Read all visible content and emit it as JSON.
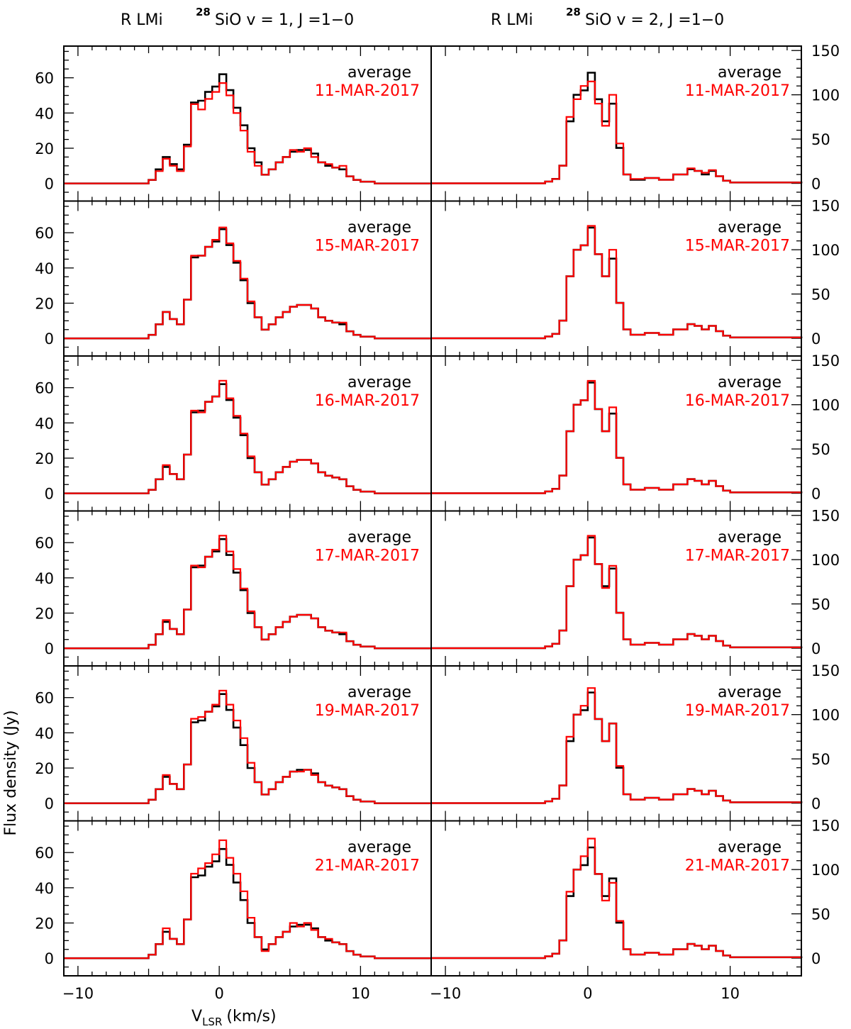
{
  "titles": {
    "left": {
      "prefix": "R LMi",
      "iso": "28",
      "line": "SiO v = 1, J =1−0"
    },
    "right": {
      "prefix": "R LMi",
      "iso": "28",
      "line": "SiO v = 2, J =1−0"
    }
  },
  "axis_labels": {
    "xlabel_main": "V",
    "xlabel_sub": "LSR",
    "xlabel_unit": "(km/s)",
    "ylabel": "Flux density (Jy)"
  },
  "legend": {
    "average_label": "average"
  },
  "colors": {
    "average": "#000000",
    "epoch": "#ff0000"
  },
  "chart_data": [
    {
      "type": "line",
      "title": "R LMi 28SiO v = 1, J =1−0",
      "column": "left",
      "xlabel": "V LSR (km/s)",
      "ylabel": "Flux density (Jy)",
      "xlim": [
        -11,
        15
      ],
      "ylim": [
        -10,
        78
      ],
      "xticks": [
        -10,
        0,
        10
      ],
      "yticks": [
        0,
        20,
        40,
        60
      ],
      "panels": [
        "11-MAR-2017",
        "15-MAR-2017",
        "16-MAR-2017",
        "17-MAR-2017",
        "19-MAR-2017",
        "21-MAR-2017"
      ],
      "series": [
        {
          "name": "average",
          "x": [
            -11,
            -6,
            -5,
            -4.5,
            -4,
            -3.5,
            -3,
            -2.5,
            -2,
            -1.5,
            -1,
            -0.5,
            0,
            0.5,
            1,
            1.5,
            2,
            2.5,
            3,
            3.5,
            4,
            4.5,
            5,
            5.5,
            6,
            6.5,
            7,
            7.5,
            8,
            8.5,
            9,
            9.5,
            10,
            11,
            15
          ],
          "values": [
            0,
            0,
            2,
            8,
            15,
            11,
            8,
            22,
            46,
            47,
            52,
            55,
            62,
            53,
            43,
            33,
            20,
            12,
            5,
            8,
            12,
            15,
            18,
            19,
            19,
            17,
            12,
            10,
            9,
            8,
            4,
            2,
            1,
            0,
            0
          ]
        },
        {
          "name": "11-MAR-2017",
          "x": [
            -11,
            -6,
            -5,
            -4.5,
            -4,
            -3.5,
            -3,
            -2.5,
            -2,
            -1.5,
            -1,
            -0.5,
            0,
            0.5,
            1,
            1.5,
            2,
            2.5,
            3,
            3.5,
            4,
            4.5,
            5,
            5.5,
            6,
            6.5,
            7,
            7.5,
            8,
            8.5,
            9,
            9.5,
            10,
            11,
            15
          ],
          "values": [
            0,
            0,
            2,
            7,
            14,
            10,
            7,
            21,
            45,
            42,
            48,
            52,
            57,
            50,
            40,
            30,
            18,
            10,
            5,
            8,
            12,
            15,
            19,
            18,
            20,
            15,
            12,
            11,
            9,
            10,
            4,
            2,
            1,
            0,
            0
          ]
        },
        {
          "name": "15-MAR-2017",
          "x": [
            -11,
            -6,
            -5,
            -4.5,
            -4,
            -3.5,
            -3,
            -2.5,
            -2,
            -1.5,
            -1,
            -0.5,
            0,
            0.5,
            1,
            1.5,
            2,
            2.5,
            3,
            3.5,
            4,
            4.5,
            5,
            5.5,
            6,
            6.5,
            7,
            7.5,
            8,
            8.5,
            9,
            9.5,
            10,
            11,
            15
          ],
          "values": [
            0,
            0,
            2,
            8,
            15,
            11,
            8,
            22,
            47,
            47,
            52,
            56,
            63,
            54,
            44,
            34,
            21,
            12,
            5,
            8,
            12,
            15,
            18,
            19,
            19,
            17,
            12,
            10,
            9,
            9,
            4,
            2,
            1,
            0,
            0
          ]
        },
        {
          "name": "16-MAR-2017",
          "x": [
            -11,
            -6,
            -5,
            -4.5,
            -4,
            -3.5,
            -3,
            -2.5,
            -2,
            -1.5,
            -1,
            -0.5,
            0,
            0.5,
            1,
            1.5,
            2,
            2.5,
            3,
            3.5,
            4,
            4.5,
            5,
            5.5,
            6,
            6.5,
            7,
            7.5,
            8,
            8.5,
            9,
            9.5,
            10,
            11,
            15
          ],
          "values": [
            0,
            0,
            2,
            8,
            16,
            11,
            8,
            22,
            47,
            46,
            52,
            55,
            64,
            54,
            44,
            34,
            21,
            12,
            5,
            8,
            12,
            15,
            18,
            19,
            19,
            17,
            12,
            10,
            9,
            8,
            4,
            2,
            1,
            0,
            0
          ]
        },
        {
          "name": "17-MAR-2017",
          "x": [
            -11,
            -6,
            -5,
            -4.5,
            -4,
            -3.5,
            -3,
            -2.5,
            -2,
            -1.5,
            -1,
            -0.5,
            0,
            0.5,
            1,
            1.5,
            2,
            2.5,
            3,
            3.5,
            4,
            4.5,
            5,
            5.5,
            6,
            6.5,
            7,
            7.5,
            8,
            8.5,
            9,
            9.5,
            10,
            11,
            15
          ],
          "values": [
            0,
            0,
            2,
            8,
            16,
            11,
            8,
            22,
            47,
            46,
            52,
            56,
            64,
            55,
            45,
            34,
            21,
            12,
            5,
            8,
            12,
            15,
            18,
            19,
            19,
            17,
            12,
            10,
            9,
            9,
            4,
            2,
            1,
            0,
            0
          ]
        },
        {
          "name": "19-MAR-2017",
          "x": [
            -11,
            -6,
            -5,
            -4.5,
            -4,
            -3.5,
            -3,
            -2.5,
            -2,
            -1.5,
            -1,
            -0.5,
            0,
            0.5,
            1,
            1.5,
            2,
            2.5,
            3,
            3.5,
            4,
            4.5,
            5,
            5.5,
            6,
            6.5,
            7,
            7.5,
            8,
            8.5,
            9,
            9.5,
            10,
            11,
            15
          ],
          "values": [
            0,
            0,
            2,
            8,
            16,
            11,
            8,
            22,
            48,
            49,
            52,
            56,
            64,
            56,
            47,
            37,
            23,
            12,
            5,
            8,
            12,
            15,
            18,
            18,
            19,
            16,
            12,
            10,
            9,
            8,
            4,
            2,
            1,
            0,
            0
          ]
        },
        {
          "name": "21-MAR-2017",
          "x": [
            -11,
            -6,
            -5,
            -4.5,
            -4,
            -3.5,
            -3,
            -2.5,
            -2,
            -1.5,
            -1,
            -0.5,
            0,
            0.5,
            1,
            1.5,
            2,
            2.5,
            3,
            3.5,
            4,
            4.5,
            5,
            5.5,
            6,
            6.5,
            7,
            7.5,
            8,
            8.5,
            9,
            9.5,
            10,
            11,
            15
          ],
          "values": [
            0,
            0,
            2,
            8,
            17,
            11,
            8,
            22,
            48,
            51,
            54,
            59,
            67,
            57,
            48,
            38,
            23,
            12,
            4,
            8,
            12,
            15,
            20,
            18,
            20,
            16,
            12,
            11,
            9,
            8,
            4,
            2,
            1,
            0,
            0
          ]
        }
      ]
    },
    {
      "type": "line",
      "title": "R LMi 28SiO v = 2, J =1−0",
      "column": "right",
      "xlabel": "V LSR (km/s)",
      "ylabel": "Flux density (Jy)",
      "xlim": [
        -11,
        15
      ],
      "ylim": [
        -20,
        155
      ],
      "xticks": [
        -10,
        0,
        10
      ],
      "yticks": [
        0,
        50,
        100,
        150
      ],
      "panels": [
        "11-MAR-2017",
        "15-MAR-2017",
        "16-MAR-2017",
        "17-MAR-2017",
        "19-MAR-2017",
        "21-MAR-2017"
      ],
      "series": [
        {
          "name": "average",
          "x": [
            -11,
            -3.5,
            -3,
            -2.5,
            -2,
            -1.5,
            -1,
            -0.5,
            0,
            0.5,
            1,
            1.5,
            2,
            2.5,
            3,
            4,
            5,
            6,
            7,
            7.5,
            8,
            8.5,
            9,
            9.5,
            10,
            15
          ],
          "values": [
            0,
            0,
            2,
            5,
            20,
            70,
            100,
            105,
            125,
            95,
            70,
            90,
            40,
            10,
            4,
            6,
            4,
            10,
            16,
            14,
            10,
            14,
            8,
            3,
            1,
            0
          ]
        },
        {
          "name": "11-MAR-2017",
          "x": [
            -11,
            -3.5,
            -3,
            -2.5,
            -2,
            -1.5,
            -1,
            -0.5,
            0,
            0.5,
            1,
            1.5,
            2,
            2.5,
            3,
            4,
            5,
            6,
            7,
            7.5,
            8,
            8.5,
            9,
            9.5,
            10,
            15
          ],
          "values": [
            0,
            0,
            2,
            5,
            20,
            75,
            95,
            110,
            115,
            90,
            65,
            100,
            45,
            10,
            5,
            6,
            4,
            10,
            17,
            14,
            12,
            15,
            8,
            3,
            1,
            0
          ]
        },
        {
          "name": "15-MAR-2017",
          "x": [
            -11,
            -3.5,
            -3,
            -2.5,
            -2,
            -1.5,
            -1,
            -0.5,
            0,
            0.5,
            1,
            1.5,
            2,
            2.5,
            3,
            4,
            5,
            6,
            7,
            7.5,
            8,
            8.5,
            9,
            9.5,
            10,
            15
          ],
          "values": [
            0,
            0,
            2,
            5,
            20,
            70,
            100,
            105,
            127,
            95,
            70,
            100,
            40,
            10,
            4,
            6,
            4,
            10,
            16,
            14,
            10,
            14,
            8,
            3,
            1,
            0
          ]
        },
        {
          "name": "16-MAR-2017",
          "x": [
            -11,
            -3.5,
            -3,
            -2.5,
            -2,
            -1.5,
            -1,
            -0.5,
            0,
            0.5,
            1,
            1.5,
            2,
            2.5,
            3,
            4,
            5,
            6,
            7,
            7.5,
            8,
            8.5,
            9,
            9.5,
            10,
            15
          ],
          "values": [
            0,
            0,
            2,
            5,
            20,
            70,
            100,
            105,
            127,
            95,
            70,
            97,
            40,
            10,
            4,
            6,
            4,
            10,
            16,
            14,
            10,
            14,
            8,
            3,
            1,
            0
          ]
        },
        {
          "name": "17-MAR-2017",
          "x": [
            -11,
            -3.5,
            -3,
            -2.5,
            -2,
            -1.5,
            -1,
            -0.5,
            0,
            0.5,
            1,
            1.5,
            2,
            2.5,
            3,
            4,
            5,
            6,
            7,
            7.5,
            8,
            8.5,
            9,
            9.5,
            10,
            15
          ],
          "values": [
            0,
            0,
            2,
            5,
            20,
            70,
            100,
            105,
            127,
            95,
            68,
            93,
            40,
            10,
            4,
            6,
            4,
            10,
            16,
            14,
            10,
            14,
            8,
            3,
            1,
            0
          ]
        },
        {
          "name": "19-MAR-2017",
          "x": [
            -11,
            -3.5,
            -3,
            -2.5,
            -2,
            -1.5,
            -1,
            -0.5,
            0,
            0.5,
            1,
            1.5,
            2,
            2.5,
            3,
            4,
            5,
            6,
            7,
            7.5,
            8,
            8.5,
            9,
            9.5,
            10,
            15
          ],
          "values": [
            0,
            0,
            2,
            5,
            20,
            75,
            100,
            110,
            130,
            95,
            70,
            90,
            42,
            10,
            4,
            6,
            4,
            10,
            16,
            14,
            10,
            14,
            8,
            3,
            1,
            0
          ]
        },
        {
          "name": "21-MAR-2017",
          "x": [
            -11,
            -3.5,
            -3,
            -2.5,
            -2,
            -1.5,
            -1,
            -0.5,
            0,
            0.5,
            1,
            1.5,
            2,
            2.5,
            3,
            4,
            5,
            6,
            7,
            7.5,
            8,
            8.5,
            9,
            9.5,
            10,
            15
          ],
          "values": [
            0,
            0,
            2,
            5,
            20,
            75,
            100,
            115,
            135,
            95,
            65,
            85,
            42,
            10,
            4,
            6,
            4,
            10,
            16,
            14,
            10,
            14,
            8,
            3,
            1,
            0
          ]
        }
      ]
    }
  ]
}
